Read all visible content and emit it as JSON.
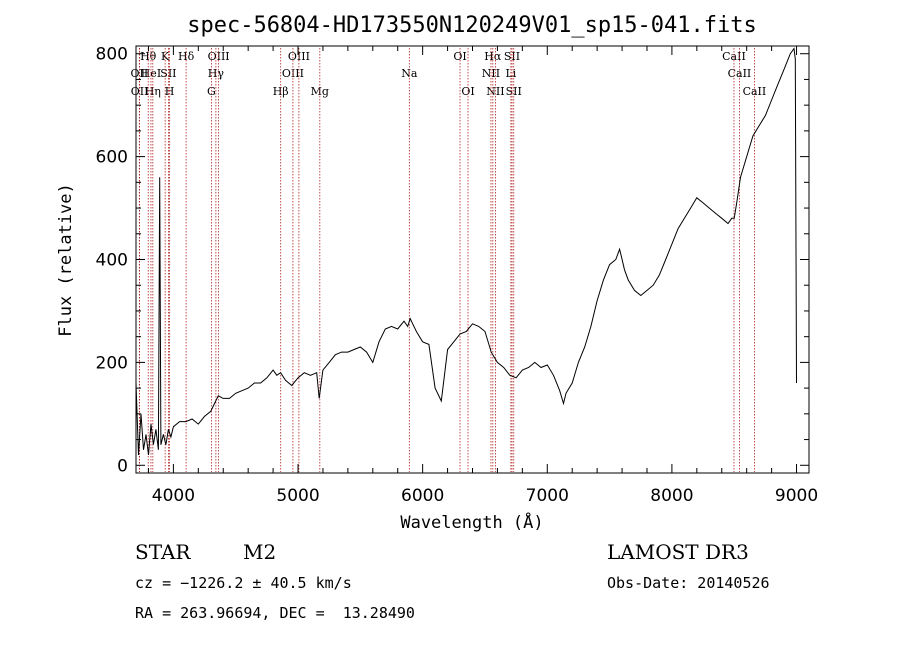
{
  "chart_data": {
    "type": "line",
    "title": "spec-56804-HD173550N120249V01_sp15-041.fits",
    "xlabel": "Wavelength (Å)",
    "ylabel": "Flux (relative)",
    "xlim": [
      3700,
      9100
    ],
    "ylim": [
      -15,
      815
    ],
    "xticks": [
      4000,
      5000,
      6000,
      7000,
      8000,
      9000
    ],
    "yticks": [
      0,
      200,
      400,
      600,
      800
    ],
    "grid": false,
    "series": [
      {
        "name": "flux",
        "x": [
          3700,
          3720,
          3740,
          3760,
          3780,
          3800,
          3820,
          3840,
          3860,
          3880,
          3890,
          3900,
          3920,
          3940,
          3960,
          3980,
          4000,
          4050,
          4100,
          4150,
          4200,
          4250,
          4300,
          4330,
          4350,
          4360,
          4400,
          4450,
          4500,
          4550,
          4600,
          4650,
          4700,
          4750,
          4800,
          4830,
          4860,
          4900,
          4950,
          5000,
          5050,
          5100,
          5150,
          5170,
          5200,
          5250,
          5300,
          5350,
          5400,
          5450,
          5500,
          5550,
          5600,
          5650,
          5700,
          5750,
          5800,
          5850,
          5880,
          5900,
          5950,
          6000,
          6050,
          6100,
          6150,
          6200,
          6250,
          6300,
          6350,
          6400,
          6450,
          6500,
          6550,
          6600,
          6650,
          6700,
          6750,
          6800,
          6850,
          6900,
          6950,
          7000,
          7050,
          7100,
          7130,
          7150,
          7200,
          7250,
          7300,
          7350,
          7400,
          7450,
          7500,
          7550,
          7580,
          7600,
          7620,
          7650,
          7700,
          7750,
          7800,
          7850,
          7900,
          7950,
          8000,
          8050,
          8100,
          8150,
          8200,
          8250,
          8300,
          8350,
          8400,
          8450,
          8480,
          8500,
          8520,
          8550,
          8600,
          8650,
          8700,
          8750,
          8800,
          8850,
          8900,
          8950,
          8980,
          8990,
          9000
        ],
        "values": [
          160,
          20,
          100,
          30,
          60,
          20,
          80,
          40,
          70,
          30,
          560,
          40,
          60,
          40,
          70,
          55,
          75,
          85,
          85,
          90,
          80,
          95,
          105,
          120,
          130,
          135,
          130,
          130,
          140,
          145,
          150,
          160,
          160,
          170,
          185,
          175,
          180,
          165,
          155,
          170,
          180,
          175,
          180,
          130,
          185,
          200,
          215,
          220,
          220,
          225,
          230,
          220,
          200,
          240,
          265,
          270,
          265,
          280,
          270,
          285,
          260,
          240,
          235,
          150,
          125,
          225,
          240,
          255,
          260,
          275,
          270,
          260,
          220,
          200,
          190,
          175,
          170,
          185,
          190,
          200,
          190,
          195,
          175,
          145,
          120,
          140,
          160,
          200,
          230,
          270,
          320,
          360,
          390,
          400,
          420,
          400,
          380,
          360,
          340,
          330,
          340,
          350,
          370,
          400,
          430,
          460,
          480,
          500,
          520,
          510,
          500,
          490,
          480,
          470,
          480,
          480,
          510,
          560,
          600,
          640,
          660,
          680,
          710,
          740,
          770,
          800,
          810,
          790,
          160
        ]
      }
    ],
    "annotations": [
      {
        "label": "Hθ",
        "x": 3798,
        "row": 1
      },
      {
        "label": "OII",
        "x": 3727,
        "row": 2
      },
      {
        "label": "OII",
        "x": 3729,
        "row": 3
      },
      {
        "label": "HeI",
        "x": 3820,
        "row": 2
      },
      {
        "label": "Hη",
        "x": 3835,
        "row": 3
      },
      {
        "label": "K",
        "x": 3934,
        "row": 1
      },
      {
        "label": "SII",
        "x": 3960,
        "row": 2
      },
      {
        "label": "H",
        "x": 3969,
        "row": 3
      },
      {
        "label": "Hδ",
        "x": 4102,
        "row": 1
      },
      {
        "label": "OIII",
        "x": 4363,
        "row": 1
      },
      {
        "label": "Hγ",
        "x": 4341,
        "row": 2
      },
      {
        "label": "G",
        "x": 4305,
        "row": 3
      },
      {
        "label": "OIII",
        "x": 5007,
        "row": 1
      },
      {
        "label": "OIII",
        "x": 4959,
        "row": 2
      },
      {
        "label": "Hβ",
        "x": 4861,
        "row": 3
      },
      {
        "label": "Mg",
        "x": 5175,
        "row": 3
      },
      {
        "label": "Na",
        "x": 5893,
        "row": 2
      },
      {
        "label": "OI",
        "x": 6300,
        "row": 1
      },
      {
        "label": "OI",
        "x": 6364,
        "row": 3
      },
      {
        "label": "Hα",
        "x": 6563,
        "row": 1
      },
      {
        "label": "SII",
        "x": 6717,
        "row": 1
      },
      {
        "label": "NII",
        "x": 6548,
        "row": 2
      },
      {
        "label": "Li",
        "x": 6708,
        "row": 2
      },
      {
        "label": "NII",
        "x": 6584,
        "row": 3
      },
      {
        "label": "SII",
        "x": 6731,
        "row": 3
      },
      {
        "label": "CaII",
        "x": 8498,
        "row": 1
      },
      {
        "label": "CaII",
        "x": 8542,
        "row": 2
      },
      {
        "label": "CaII",
        "x": 8662,
        "row": 3
      }
    ]
  },
  "info": {
    "class": "STAR",
    "subclass": "M2",
    "survey": "LAMOST DR3",
    "cz": "cz = −1226.2 ± 40.5 km/s",
    "obs_date": "Obs-Date: 20140526",
    "radec": "RA = 263.96694, DEC =  13.28490"
  },
  "colors": {
    "spectrum": "#000000",
    "lines": "#b22222",
    "axes": "#000000"
  }
}
